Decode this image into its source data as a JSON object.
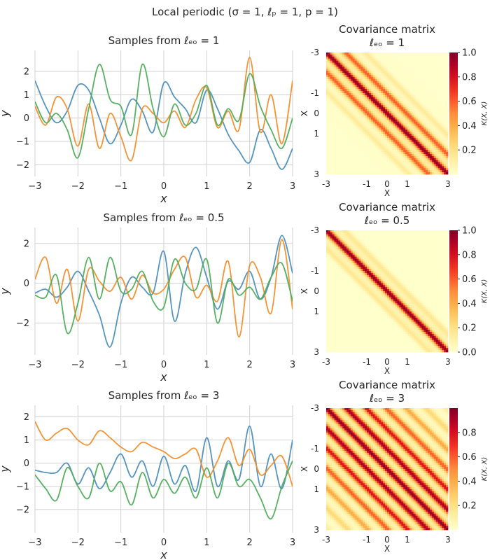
{
  "figure": {
    "suptitle": "Local periodic (σ = 1, ℓₚ = 1, p = 1)"
  },
  "chart_data": [
    {
      "type": "line",
      "title": "Samples from ℓₑₒ = 1",
      "xlabel": "x",
      "ylabel": "y",
      "xlim": [
        -3,
        3
      ],
      "ylim": [
        -2.5,
        2.9
      ],
      "xticks": [
        "−3",
        "−2",
        "−1",
        "0",
        "1",
        "2",
        "3"
      ],
      "yticks": [
        "−2",
        "−1",
        "0",
        "1",
        "2"
      ],
      "grid": true,
      "x": [
        -3.0,
        -2.75,
        -2.5,
        -2.25,
        -2.0,
        -1.75,
        -1.5,
        -1.25,
        -1.0,
        -0.75,
        -0.5,
        -0.25,
        0.0,
        0.25,
        0.5,
        0.75,
        1.0,
        1.25,
        1.5,
        1.75,
        2.0,
        2.25,
        2.5,
        2.75,
        3.0
      ],
      "series": [
        {
          "color": "#4c8fbd",
          "values": [
            1.6,
            0.5,
            -0.2,
            0.3,
            1.4,
            1.2,
            0.0,
            -1.1,
            -0.3,
            0.8,
            0.3,
            -0.6,
            1.5,
            0.9,
            0.4,
            -0.2,
            1.2,
            0.4,
            -0.7,
            -1.4,
            -1.9,
            -0.5,
            -1.3,
            -2.2,
            -1.3
          ]
        },
        {
          "color": "#f28e2b",
          "values": [
            0.5,
            -0.3,
            0.9,
            0.4,
            -1.2,
            0.6,
            -1.3,
            0.2,
            -0.8,
            -1.8,
            0.4,
            0.2,
            -0.2,
            0.3,
            -0.4,
            0.8,
            1.3,
            -0.4,
            0.3,
            -0.5,
            2.6,
            -0.6,
            1.0,
            -1.1,
            1.6
          ]
        },
        {
          "color": "#4fad5b",
          "values": [
            0.7,
            -0.2,
            0.2,
            -0.5,
            -1.7,
            0.4,
            2.3,
            0.8,
            0.5,
            -0.7,
            2.3,
            0.4,
            -0.8,
            0.6,
            -0.3,
            0.2,
            1.4,
            -0.3,
            0.4,
            -0.1,
            1.9,
            0.5,
            -0.5,
            -1.3,
            0.0
          ]
        }
      ]
    },
    {
      "type": "heatmap",
      "title": "Covariance matrix",
      "subtitle": "ℓₑₒ = 1",
      "xlabel": "X",
      "ylabel": "X",
      "ticks": [
        "-3",
        "-1",
        "0",
        "1",
        "3"
      ],
      "colorbar_label": "K(X, X)",
      "colorbar_ticks": [
        "0.2",
        "0.4",
        "0.6",
        "0.8",
        "1.0"
      ],
      "clim": [
        0.0,
        1.0
      ],
      "ell_eq": 1,
      "ell_p": 1,
      "period": 1,
      "colormap": "YlOrRd"
    },
    {
      "type": "line",
      "title": "Samples from ℓₑₒ = 0.5",
      "xlabel": "x",
      "ylabel": "y",
      "xlim": [
        -3,
        3
      ],
      "ylim": [
        -3.6,
        2.8
      ],
      "xticks": [
        "−3",
        "−2",
        "−1",
        "0",
        "1",
        "2",
        "3"
      ],
      "yticks": [
        "−2",
        "0",
        "2"
      ],
      "grid": true,
      "x": [
        -3.0,
        -2.75,
        -2.5,
        -2.25,
        -2.0,
        -1.75,
        -1.5,
        -1.25,
        -1.0,
        -0.75,
        -0.5,
        -0.25,
        0.0,
        0.25,
        0.5,
        0.75,
        1.0,
        1.25,
        1.5,
        1.75,
        2.0,
        2.25,
        2.5,
        2.75,
        3.0
      ],
      "series": [
        {
          "color": "#4c8fbd",
          "values": [
            -0.5,
            -0.3,
            -0.7,
            -0.2,
            0.6,
            -0.4,
            -1.6,
            -3.2,
            -1.0,
            0.3,
            -0.2,
            -0.5,
            1.6,
            -1.9,
            0.5,
            1.8,
            0.3,
            -1.3,
            0.1,
            -0.3,
            0.6,
            -0.8,
            0.3,
            2.4,
            0.5
          ]
        },
        {
          "color": "#f28e2b",
          "values": [
            0.2,
            1.3,
            -1.0,
            0.7,
            -1.9,
            0.7,
            0.1,
            -0.4,
            0.3,
            -0.8,
            0.4,
            -0.5,
            -0.3,
            0.7,
            1.3,
            -0.7,
            -0.1,
            -0.9,
            1.1,
            -2.7,
            0.9,
            0.3,
            -1.5,
            2.2,
            -1.3
          ]
        },
        {
          "color": "#4fad5b",
          "values": [
            -0.6,
            -0.7,
            0.4,
            -2.5,
            -1.0,
            1.3,
            -0.8,
            1.3,
            -0.4,
            -0.3,
            0.6,
            -0.9,
            -1.2,
            1.2,
            0.0,
            -0.3,
            1.2,
            -2.0,
            0.2,
            -0.6,
            -0.2,
            -0.8,
            0.3,
            1.0,
            -0.9
          ]
        }
      ]
    },
    {
      "type": "heatmap",
      "title": "Covariance matrix",
      "subtitle": "ℓₑₒ = 0.5",
      "xlabel": "X",
      "ylabel": "X",
      "ticks": [
        "-3",
        "-1",
        "0",
        "1",
        "3"
      ],
      "colorbar_label": "K(X, X)",
      "colorbar_ticks": [
        "0.0",
        "0.2",
        "0.4",
        "0.6",
        "0.8",
        "1.0"
      ],
      "clim": [
        0.0,
        1.0
      ],
      "ell_eq": 0.5,
      "ell_p": 1,
      "period": 1,
      "colormap": "YlOrRd"
    },
    {
      "type": "line",
      "title": "Samples from ℓₑₒ = 3",
      "xlabel": "x",
      "ylabel": "y",
      "xlim": [
        -3,
        3
      ],
      "ylim": [
        -3.0,
        2.5
      ],
      "xticks": [
        "−3",
        "−2",
        "−1",
        "0",
        "1",
        "2",
        "3"
      ],
      "yticks": [
        "−2",
        "−1",
        "0",
        "1",
        "2"
      ],
      "grid": true,
      "x": [
        -3.0,
        -2.75,
        -2.5,
        -2.25,
        -2.0,
        -1.75,
        -1.5,
        -1.25,
        -1.0,
        -0.75,
        -0.5,
        -0.25,
        0.0,
        0.25,
        0.5,
        0.75,
        1.0,
        1.25,
        1.5,
        1.75,
        2.0,
        2.25,
        2.5,
        2.75,
        3.0
      ],
      "series": [
        {
          "color": "#4c8fbd",
          "values": [
            -0.3,
            -0.4,
            -0.4,
            0.0,
            -0.9,
            -0.2,
            -1.1,
            -0.4,
            0.4,
            -0.6,
            0.1,
            -1.0,
            0.3,
            -0.9,
            -0.1,
            -1.2,
            1.1,
            -1.0,
            0.1,
            -0.7,
            1.6,
            -1.0,
            0.4,
            -1.1,
            1.0
          ]
        },
        {
          "color": "#f28e2b",
          "values": [
            1.8,
            1.0,
            1.3,
            1.5,
            1.0,
            0.8,
            1.4,
            1.1,
            0.7,
            0.5,
            0.9,
            0.7,
            0.5,
            0.2,
            0.4,
            0.6,
            -0.6,
            0.1,
            1.1,
            -0.1,
            0.6,
            -0.5,
            -0.1,
            0.3,
            -1.0
          ]
        },
        {
          "color": "#4fad5b",
          "values": [
            -0.5,
            -1.1,
            -1.6,
            -0.2,
            -1.0,
            -1.5,
            0.0,
            -1.2,
            -0.8,
            -1.8,
            -0.4,
            -1.5,
            -0.7,
            -1.3,
            -0.6,
            -1.5,
            -0.2,
            -1.5,
            0.0,
            -1.0,
            -0.7,
            -1.5,
            -2.4,
            -1.0,
            0.1
          ]
        }
      ]
    },
    {
      "type": "heatmap",
      "title": "Covariance matrix",
      "subtitle": "ℓₑₒ = 3",
      "xlabel": "X",
      "ylabel": "X",
      "ticks": [
        "-3",
        "-1",
        "0",
        "1",
        "3"
      ],
      "colorbar_label": "K(X, X)",
      "colorbar_ticks": [
        "0.2",
        "0.4",
        "0.6",
        "0.8"
      ],
      "clim": [
        0.0,
        1.0
      ],
      "ell_eq": 3,
      "ell_p": 1,
      "period": 1,
      "colormap": "YlOrRd"
    }
  ]
}
